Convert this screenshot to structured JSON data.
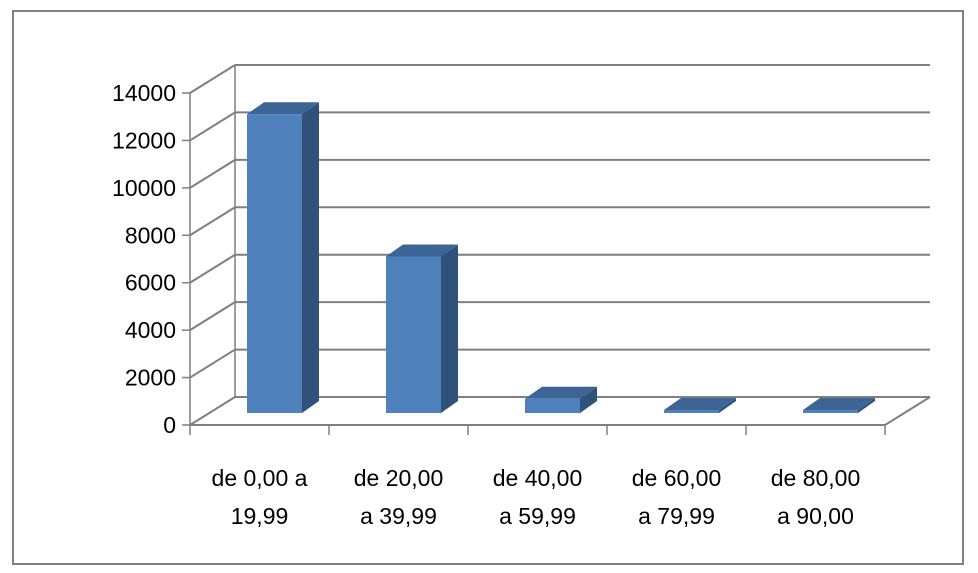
{
  "chart_data": {
    "type": "bar",
    "style": "3d-column",
    "categories": [
      [
        "de 0,00 a",
        "19,99"
      ],
      [
        "de 20,00",
        "a 39,99"
      ],
      [
        "de 40,00",
        "a 59,99"
      ],
      [
        "de 60,00",
        "a 79,99"
      ],
      [
        "de 80,00",
        "a 90,00"
      ]
    ],
    "values": [
      12600,
      6600,
      600,
      20,
      20
    ],
    "ylim": [
      0,
      14000
    ],
    "ytick_step": 2000,
    "y_ticks": [
      "0",
      "2000",
      "4000",
      "6000",
      "8000",
      "10000",
      "12000",
      "14000"
    ],
    "grid": true,
    "legend": "none",
    "colors": {
      "bar_front": "#4f81bd",
      "bar_side": "#2f527a",
      "bar_top": "#3c6494",
      "gridline": "#7f7f7f",
      "frame": "#7f7f7f"
    }
  }
}
